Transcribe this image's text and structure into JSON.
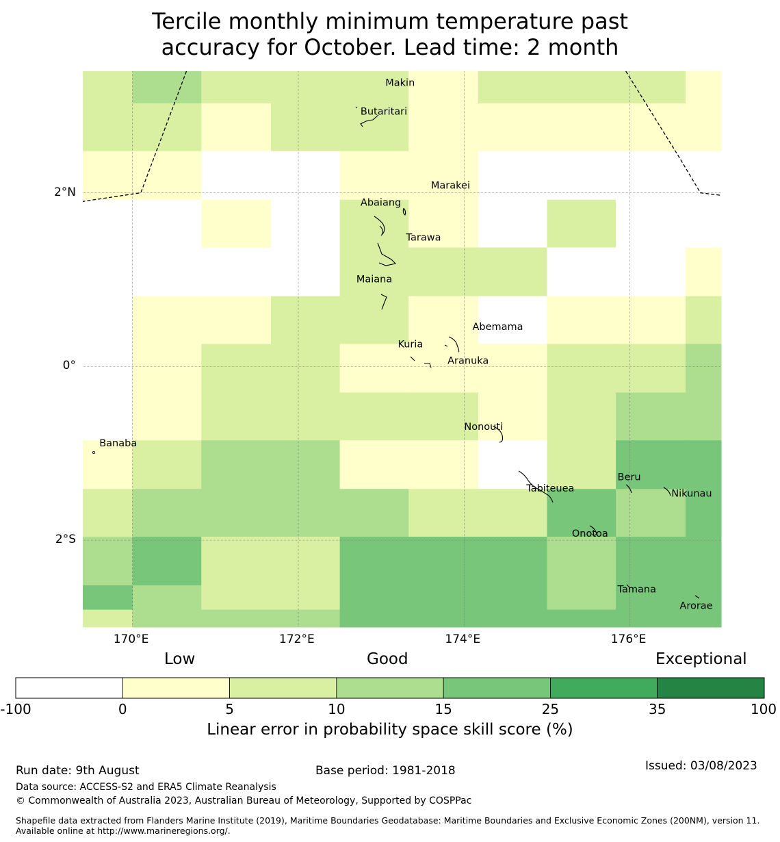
{
  "title_line1": "Tercile monthly minimum temperature past",
  "title_line2": "accuracy for October. Lead time: 2 month",
  "map": {
    "lon_range": [
      169.4,
      177.1
    ],
    "lat_range": [
      -3.0,
      3.4
    ],
    "lon_ticks": [
      {
        "value": 170,
        "label": "170°E"
      },
      {
        "value": 172,
        "label": "172°E"
      },
      {
        "value": 174,
        "label": "174°E"
      },
      {
        "value": 176,
        "label": "176°E"
      }
    ],
    "lat_ticks": [
      {
        "value": 2,
        "label": "2°N"
      },
      {
        "value": 0,
        "label": "0°"
      },
      {
        "value": -2,
        "label": "2°S"
      }
    ],
    "column_lon_edges": [
      169.4,
      170.0,
      170.83,
      171.67,
      172.5,
      173.33,
      174.17,
      175.0,
      175.83,
      176.67,
      177.1
    ],
    "row_lat_edges": [
      3.4,
      3.03,
      2.48,
      1.92,
      1.37,
      0.81,
      0.26,
      -0.3,
      -0.85,
      -1.41,
      -1.96,
      -2.52,
      -2.8,
      -3.0
    ],
    "grid_values": [
      [
        1,
        2,
        1,
        1,
        1,
        0,
        1,
        1,
        1,
        0
      ],
      [
        1,
        1,
        0,
        1,
        1,
        0,
        0,
        0,
        0,
        0
      ],
      [
        0,
        0,
        -1,
        -1,
        0,
        0,
        -1,
        -1,
        -1,
        -1
      ],
      [
        -1,
        -1,
        0,
        -1,
        1,
        0,
        -1,
        1,
        -1,
        -1
      ],
      [
        -1,
        -1,
        -1,
        -1,
        1,
        1,
        1,
        -1,
        -1,
        0
      ],
      [
        -1,
        0,
        0,
        1,
        1,
        0,
        -1,
        0,
        0,
        1
      ],
      [
        -1,
        0,
        1,
        1,
        0,
        0,
        0,
        1,
        1,
        2
      ],
      [
        -1,
        0,
        1,
        1,
        1,
        1,
        0,
        1,
        2,
        2
      ],
      [
        0,
        1,
        2,
        2,
        0,
        0,
        -1,
        1,
        3,
        3
      ],
      [
        1,
        2,
        2,
        2,
        2,
        1,
        1,
        3,
        2,
        3
      ],
      [
        2,
        3,
        1,
        1,
        3,
        3,
        3,
        2,
        3,
        3
      ],
      [
        3,
        2,
        1,
        1,
        3,
        3,
        3,
        2,
        3,
        3
      ],
      [
        1,
        2,
        2,
        2,
        3,
        3,
        3,
        3,
        3,
        3
      ]
    ],
    "places": [
      {
        "name": "Makin",
        "lon": 173.05,
        "lat": 3.23
      },
      {
        "name": "Butaritari",
        "lon": 172.75,
        "lat": 2.9
      },
      {
        "name": "Marakei",
        "lon": 173.6,
        "lat": 2.05
      },
      {
        "name": "Abaiang",
        "lon": 172.75,
        "lat": 1.85
      },
      {
        "name": "Tarawa",
        "lon": 173.3,
        "lat": 1.45
      },
      {
        "name": "Maiana",
        "lon": 172.7,
        "lat": 0.97
      },
      {
        "name": "Abemama",
        "lon": 174.1,
        "lat": 0.42
      },
      {
        "name": "Kuria",
        "lon": 173.2,
        "lat": 0.22
      },
      {
        "name": "Aranuka",
        "lon": 173.8,
        "lat": 0.03
      },
      {
        "name": "Nonouti",
        "lon": 174.0,
        "lat": -0.73
      },
      {
        "name": "Banaba",
        "lon": 169.6,
        "lat": -0.92
      },
      {
        "name": "Tabiteuea",
        "lon": 174.75,
        "lat": -1.44
      },
      {
        "name": "Beru",
        "lon": 175.85,
        "lat": -1.31
      },
      {
        "name": "Nikunau",
        "lon": 176.5,
        "lat": -1.5
      },
      {
        "name": "Onotoa",
        "lon": 175.3,
        "lat": -1.96
      },
      {
        "name": "Tamana",
        "lon": 175.85,
        "lat": -2.6
      },
      {
        "name": "Arorae",
        "lon": 176.6,
        "lat": -2.79
      }
    ],
    "boundary_lines": [
      [
        [
          170.65,
          3.4
        ],
        [
          170.1,
          2.0
        ],
        [
          169.4,
          1.9
        ]
      ],
      [
        [
          175.95,
          3.4
        ],
        [
          176.6,
          2.4
        ],
        [
          176.85,
          2.0
        ],
        [
          177.1,
          1.97
        ]
      ]
    ]
  },
  "legend": {
    "categories": [
      "Low",
      "Good",
      "Exceptional"
    ],
    "bins": [
      {
        "from": -100,
        "to": 0,
        "color": "#ffffff"
      },
      {
        "from": 0,
        "to": 5,
        "color": "#ffffcc"
      },
      {
        "from": 5,
        "to": 10,
        "color": "#d9f0a3"
      },
      {
        "from": 10,
        "to": 15,
        "color": "#addd8e"
      },
      {
        "from": 15,
        "to": 25,
        "color": "#78c679"
      },
      {
        "from": 25,
        "to": 35,
        "color": "#41ab5d"
      },
      {
        "from": 35,
        "to": 100,
        "color": "#238443"
      }
    ],
    "tick_labels": [
      "-100",
      "0",
      "5",
      "10",
      "15",
      "25",
      "35",
      "100"
    ],
    "title": "Linear error in probability space skill score (%)"
  },
  "footer": {
    "run_date": "Run date: 9th August",
    "base_period": "Base period: 1981-2018",
    "issued": "Issued: 03/08/2023",
    "data_source": "Data source: ACCESS-S2 and ERA5 Climate Reanalysis",
    "copyright": "© Commonwealth of Australia 2023, Australian Bureau of Meteorology, Supported by COSPPac",
    "shapefile": "Shapefile data extracted from Flanders Marine Institute (2019), Maritime Boundaries Geodatabase: Maritime Boundaries and Exclusive Economic Zones (200NM), version 11. Available online at http://www.marineregions.org/."
  }
}
